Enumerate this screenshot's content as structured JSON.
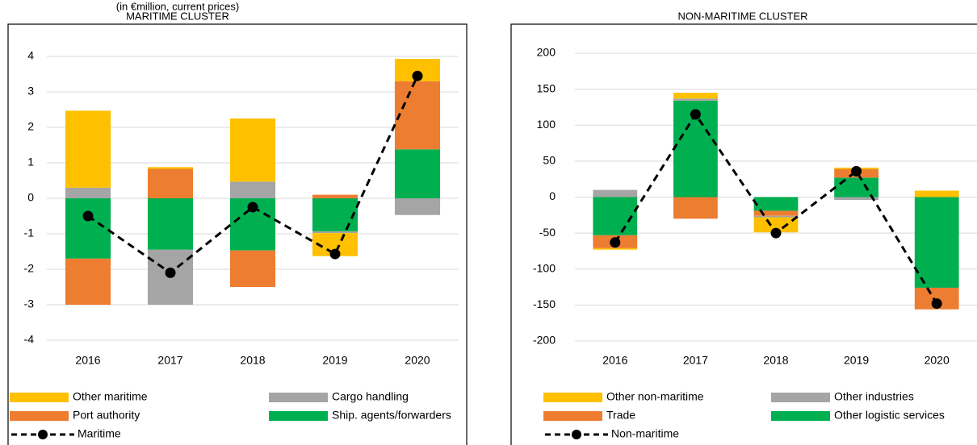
{
  "chart_data": [
    {
      "type": "bar",
      "stacked": true,
      "subtitle": "(in €million, current prices)",
      "title": "MARITIME CLUSTER",
      "categories": [
        "2016",
        "2017",
        "2018",
        "2019",
        "2020"
      ],
      "ylim": [
        -4,
        4
      ],
      "yticks": [
        -4,
        -3,
        -2,
        -1,
        0,
        1,
        2,
        3,
        4
      ],
      "grid": true,
      "series": [
        {
          "name": "Other maritime",
          "color": "#FFC000",
          "values": [
            2.17,
            0.05,
            1.78,
            -0.65,
            0.63
          ]
        },
        {
          "name": "Cargo handling",
          "color": "#A5A5A5",
          "values": [
            0.3,
            -1.55,
            0.47,
            -0.05,
            -0.47
          ]
        },
        {
          "name": "Port authority",
          "color": "#ED7D31",
          "values": [
            -1.3,
            0.83,
            -1.03,
            0.1,
            1.92
          ]
        },
        {
          "name": "Ship. agents/forwarders",
          "color": "#00B050",
          "values": [
            -1.7,
            -1.45,
            -1.47,
            -0.93,
            1.38
          ]
        },
        {
          "name": "Maritime",
          "type": "line",
          "color": "#000000",
          "values": [
            -0.5,
            -2.1,
            -0.25,
            -1.57,
            3.45
          ]
        }
      ]
    },
    {
      "type": "bar",
      "stacked": true,
      "title": "NON-MARITIME CLUSTER",
      "categories": [
        "2016",
        "2017",
        "2018",
        "2019",
        "2020"
      ],
      "ylim": [
        -200,
        200
      ],
      "yticks": [
        -200,
        -150,
        -100,
        -50,
        0,
        50,
        100,
        150,
        200
      ],
      "grid": true,
      "series": [
        {
          "name": "Other non-maritime",
          "color": "#FFC000",
          "values": [
            -2,
            8,
            -21,
            2,
            9
          ]
        },
        {
          "name": "Other industries",
          "color": "#A5A5A5",
          "values": [
            10,
            3,
            -2,
            -4,
            0
          ]
        },
        {
          "name": "Trade",
          "color": "#ED7D31",
          "values": [
            -18,
            -30,
            -7,
            12,
            -30
          ]
        },
        {
          "name": "Other logistic services",
          "color": "#00B050",
          "values": [
            -53,
            134,
            -19,
            27,
            -126
          ]
        },
        {
          "name": "Non-maritime",
          "type": "line",
          "color": "#000000",
          "values": [
            -63,
            115,
            -50,
            36,
            -148
          ]
        }
      ]
    }
  ]
}
